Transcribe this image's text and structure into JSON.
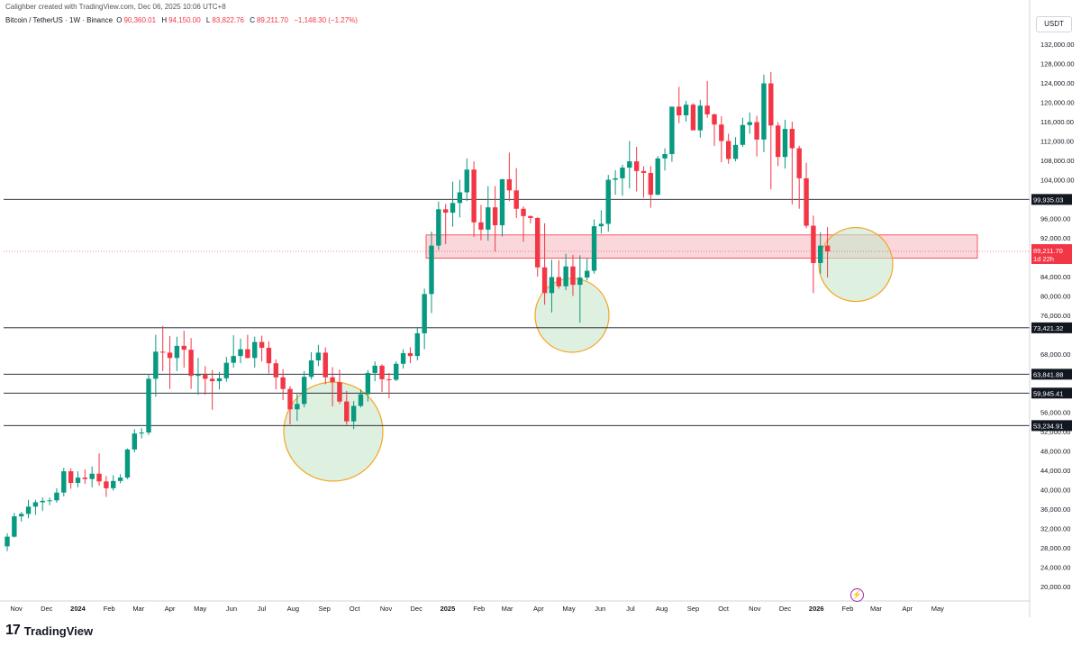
{
  "creator_line": "Calighber created with TradingView.com, Dec 06, 2025 10:06 UTC+8",
  "legend": {
    "title": "Bitcoin / TetherUS · 1W · Binance",
    "o_label": "O",
    "o_value": "90,360.01",
    "h_label": "H",
    "h_value": "94,150.00",
    "l_label": "L",
    "l_value": "83,822.76",
    "c_label": "C",
    "c_value": "89,211.70",
    "change": "−1,148.30 (−1.27%)"
  },
  "currency": "USDT",
  "brand": {
    "mark": "17",
    "name": "TradingView"
  },
  "colors": {
    "up": "#089981",
    "down": "#f23645",
    "zone_fill": "#f8c9cf",
    "zone_stroke": "#f23645",
    "circle_fill": "#c8e6c9",
    "circle_stroke": "#f5a623",
    "level_line": "#131722",
    "price_tag": "#f23645"
  },
  "chart_data": {
    "type": "candlestick",
    "title": "Bitcoin / TetherUS",
    "interval": "1W",
    "exchange": "Binance",
    "ylim": [
      18000,
      135000
    ],
    "grid": false,
    "y_ticks": [
      "132,000.00",
      "128,000.00",
      "124,000.00",
      "120,000.00",
      "116,000.00",
      "112,000.00",
      "108,000.00",
      "104,000.00",
      "96,000.00",
      "92,000.00",
      "84,000.00",
      "80,000.00",
      "76,000.00",
      "68,000.00",
      "64,000.00",
      "56,000.00",
      "52,000.00",
      "48,000.00",
      "44,000.00",
      "40,000.00",
      "36,000.00",
      "32,000.00",
      "28,000.00",
      "24,000.00",
      "20,000.00"
    ],
    "y_tick_values": [
      132000,
      128000,
      124000,
      120000,
      116000,
      112000,
      108000,
      104000,
      96000,
      92000,
      84000,
      80000,
      76000,
      68000,
      64000,
      56000,
      52000,
      48000,
      44000,
      40000,
      36000,
      32000,
      28000,
      24000,
      20000
    ],
    "x_ticks": [
      {
        "label": "Nov",
        "date": "2023-11-01",
        "bold": false
      },
      {
        "label": "Dec",
        "date": "2023-12-01",
        "bold": false
      },
      {
        "label": "2024",
        "date": "2024-01-01",
        "bold": true
      },
      {
        "label": "Feb",
        "date": "2024-02-01",
        "bold": false
      },
      {
        "label": "Mar",
        "date": "2024-03-01",
        "bold": false
      },
      {
        "label": "Apr",
        "date": "2024-04-01",
        "bold": false
      },
      {
        "label": "May",
        "date": "2024-05-01",
        "bold": false
      },
      {
        "label": "Jun",
        "date": "2024-06-01",
        "bold": false
      },
      {
        "label": "Jul",
        "date": "2024-07-01",
        "bold": false
      },
      {
        "label": "Aug",
        "date": "2024-08-01",
        "bold": false
      },
      {
        "label": "Sep",
        "date": "2024-09-01",
        "bold": false
      },
      {
        "label": "Oct",
        "date": "2024-10-01",
        "bold": false
      },
      {
        "label": "Nov",
        "date": "2024-11-01",
        "bold": false
      },
      {
        "label": "Dec",
        "date": "2024-12-01",
        "bold": false
      },
      {
        "label": "2025",
        "date": "2025-01-01",
        "bold": true
      },
      {
        "label": "Feb",
        "date": "2025-02-01",
        "bold": false
      },
      {
        "label": "Mar",
        "date": "2025-03-01",
        "bold": false
      },
      {
        "label": "Apr",
        "date": "2025-04-01",
        "bold": false
      },
      {
        "label": "May",
        "date": "2025-05-01",
        "bold": false
      },
      {
        "label": "Jun",
        "date": "2025-06-01",
        "bold": false
      },
      {
        "label": "Jul",
        "date": "2025-07-01",
        "bold": false
      },
      {
        "label": "Aug",
        "date": "2025-08-01",
        "bold": false
      },
      {
        "label": "Sep",
        "date": "2025-09-01",
        "bold": false
      },
      {
        "label": "Oct",
        "date": "2025-10-01",
        "bold": false
      },
      {
        "label": "Nov",
        "date": "2025-11-01",
        "bold": false
      },
      {
        "label": "Dec",
        "date": "2025-12-01",
        "bold": false
      },
      {
        "label": "2026",
        "date": "2026-01-01",
        "bold": true
      },
      {
        "label": "Feb",
        "date": "2026-02-01",
        "bold": false
      },
      {
        "label": "Mar",
        "date": "2026-03-01",
        "bold": false
      },
      {
        "label": "Apr",
        "date": "2026-04-01",
        "bold": false
      },
      {
        "label": "May",
        "date": "2026-05-01",
        "bold": false
      }
    ],
    "candles_ohlc": [
      [
        28300,
        31000,
        27300,
        30300
      ],
      [
        30300,
        35200,
        30100,
        34500
      ],
      [
        34500,
        35400,
        33400,
        35000
      ],
      [
        35000,
        37900,
        34100,
        36500
      ],
      [
        36500,
        37900,
        34800,
        37400
      ],
      [
        37400,
        38400,
        35600,
        37700
      ],
      [
        37700,
        38400,
        36800,
        37800
      ],
      [
        37800,
        40300,
        37300,
        39400
      ],
      [
        39400,
        44500,
        38600,
        43800
      ],
      [
        43800,
        44400,
        40200,
        41400
      ],
      [
        41400,
        43800,
        40500,
        42500
      ],
      [
        42500,
        44200,
        41200,
        42200
      ],
      [
        42200,
        44800,
        40500,
        43300
      ],
      [
        43300,
        47500,
        40800,
        41700
      ],
      [
        41700,
        42800,
        38500,
        40300
      ],
      [
        40300,
        43000,
        39800,
        41800
      ],
      [
        41800,
        43200,
        41300,
        42500
      ],
      [
        42500,
        48500,
        42200,
        48300
      ],
      [
        48300,
        52500,
        47700,
        51600
      ],
      [
        51600,
        52700,
        50600,
        51800
      ],
      [
        51800,
        63900,
        51300,
        62900
      ],
      [
        62900,
        72000,
        59200,
        68500
      ],
      [
        68500,
        73800,
        64500,
        68300
      ],
      [
        68300,
        71700,
        60800,
        67200
      ],
      [
        67200,
        71600,
        64500,
        69700
      ],
      [
        69700,
        72800,
        65200,
        68900
      ],
      [
        68900,
        71300,
        60800,
        63500
      ],
      [
        63500,
        67200,
        59600,
        63700
      ],
      [
        63700,
        65500,
        59600,
        62900
      ],
      [
        62900,
        64700,
        56500,
        62400
      ],
      [
        62400,
        64300,
        60700,
        63000
      ],
      [
        63000,
        67400,
        62300,
        66200
      ],
      [
        66200,
        71900,
        65200,
        67600
      ],
      [
        67600,
        71200,
        66100,
        69000
      ],
      [
        69000,
        72000,
        67100,
        67200
      ],
      [
        67200,
        71600,
        65200,
        70500
      ],
      [
        70500,
        71800,
        66500,
        69300
      ],
      [
        69300,
        70600,
        64000,
        66100
      ],
      [
        66100,
        66900,
        60700,
        63200
      ],
      [
        63200,
        64900,
        58500,
        60800
      ],
      [
        60800,
        61400,
        53500,
        56600
      ],
      [
        56600,
        60000,
        54200,
        57700
      ],
      [
        57700,
        64500,
        57000,
        63300
      ],
      [
        63300,
        68400,
        62800,
        66700
      ],
      [
        66700,
        69900,
        65500,
        68300
      ],
      [
        68300,
        69400,
        61800,
        63200
      ],
      [
        63200,
        65300,
        57200,
        62200
      ],
      [
        62200,
        64800,
        57700,
        58200
      ],
      [
        58200,
        60400,
        53400,
        54100
      ],
      [
        54100,
        58300,
        52500,
        57300
      ],
      [
        57300,
        60700,
        57000,
        59700
      ],
      [
        59700,
        64700,
        58200,
        64100
      ],
      [
        64100,
        66500,
        62400,
        65600
      ],
      [
        65600,
        65900,
        60200,
        62800
      ],
      [
        62800,
        64100,
        58900,
        62700
      ],
      [
        62700,
        66500,
        62400,
        66000
      ],
      [
        66000,
        69000,
        65000,
        68200
      ],
      [
        68200,
        69400,
        66100,
        67600
      ],
      [
        67600,
        73600,
        66700,
        72300
      ],
      [
        72300,
        81500,
        69000,
        80400
      ],
      [
        80400,
        93300,
        76500,
        90400
      ],
      [
        90400,
        99500,
        89500,
        97900
      ],
      [
        97900,
        99000,
        90700,
        97200
      ],
      [
        97200,
        103600,
        94300,
        99200
      ],
      [
        99200,
        104000,
        96200,
        101400
      ],
      [
        101400,
        108400,
        99600,
        106100
      ],
      [
        106100,
        107800,
        92200,
        95200
      ],
      [
        95200,
        98800,
        91500,
        93700
      ],
      [
        93700,
        102700,
        91400,
        98300
      ],
      [
        98300,
        102700,
        89200,
        94600
      ],
      [
        94600,
        104200,
        92300,
        104100
      ],
      [
        104100,
        109600,
        99600,
        101800
      ],
      [
        101800,
        106400,
        96100,
        98000
      ],
      [
        98000,
        98500,
        91200,
        96500
      ],
      [
        96500,
        96600,
        95000,
        96100
      ],
      [
        96100,
        96300,
        84000,
        85900
      ],
      [
        85900,
        95000,
        78200,
        80600
      ],
      [
        80600,
        87500,
        76600,
        83900
      ],
      [
        83900,
        87400,
        81500,
        82000
      ],
      [
        82000,
        88700,
        81200,
        86100
      ],
      [
        86100,
        88500,
        80000,
        82300
      ],
      [
        82300,
        88400,
        74500,
        83800
      ],
      [
        83800,
        87800,
        83200,
        85200
      ],
      [
        85200,
        95800,
        84600,
        94400
      ],
      [
        94400,
        97700,
        92900,
        94900
      ],
      [
        94900,
        105000,
        93300,
        104000
      ],
      [
        104000,
        106000,
        100900,
        104300
      ],
      [
        104300,
        107100,
        100700,
        106500
      ],
      [
        106500,
        112000,
        102200,
        107800
      ],
      [
        107800,
        110800,
        101600,
        105800
      ],
      [
        105800,
        106800,
        100300,
        105400
      ],
      [
        105400,
        106800,
        98200,
        100900
      ],
      [
        100900,
        108900,
        100800,
        108400
      ],
      [
        108400,
        110500,
        105900,
        109300
      ],
      [
        109300,
        118800,
        107700,
        119100
      ],
      [
        119100,
        123200,
        115700,
        117300
      ],
      [
        117300,
        120300,
        116000,
        119500
      ],
      [
        119500,
        119800,
        114700,
        114200
      ],
      [
        114200,
        120500,
        112700,
        119300
      ],
      [
        119300,
        124400,
        116800,
        117500
      ],
      [
        117500,
        117700,
        111000,
        115400
      ],
      [
        115400,
        117100,
        107600,
        112000
      ],
      [
        112000,
        113500,
        107300,
        108300
      ],
      [
        108300,
        112800,
        107800,
        111200
      ],
      [
        111200,
        116800,
        110800,
        115300
      ],
      [
        115300,
        117900,
        113500,
        115900
      ],
      [
        115900,
        117200,
        108800,
        112300
      ],
      [
        112300,
        125700,
        109700,
        123900
      ],
      [
        123900,
        126200,
        102000,
        115200
      ],
      [
        115200,
        115900,
        106800,
        108700
      ],
      [
        108700,
        116400,
        106300,
        114500
      ],
      [
        114500,
        116000,
        98900,
        110500
      ],
      [
        110500,
        111000,
        98000,
        104300
      ],
      [
        104300,
        107500,
        94000,
        94500
      ],
      [
        94500,
        96600,
        80600,
        86800
      ],
      [
        86800,
        93100,
        84600,
        90400
      ],
      [
        90400,
        94200,
        83800,
        89200
      ]
    ],
    "horizontal_levels": [
      {
        "label": "99,935.03",
        "value": 99935.03
      },
      {
        "label": "73,421.32",
        "value": 73421.32
      },
      {
        "label": "63,841.88",
        "value": 63841.88
      },
      {
        "label": "59,945.41",
        "value": 59945.41
      },
      {
        "label": "53,234.91",
        "value": 53234.91
      }
    ],
    "resistance_zone": {
      "low": 87800,
      "high": 92600
    },
    "current_price": {
      "label": "89,211.70",
      "countdown": "1d 22h",
      "value": 89211.7
    },
    "highlight_circles": [
      {
        "center_price": 52000
      },
      {
        "center_price": 76000
      },
      {
        "center_price": 86500
      }
    ]
  }
}
